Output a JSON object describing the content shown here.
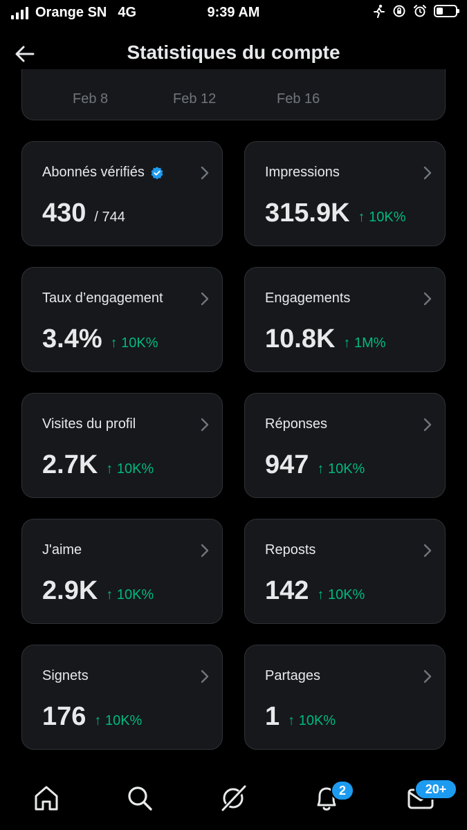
{
  "status_bar": {
    "carrier": "Orange SN",
    "network": "4G",
    "time": "9:39 AM"
  },
  "header": {
    "title": "Statistiques du compte",
    "back_icon": "arrow-left-icon"
  },
  "chart_axis": {
    "labels": [
      "Feb 8",
      "Feb 12",
      "Feb 16"
    ]
  },
  "metrics": [
    {
      "label": "Abonnés vérifiés",
      "value": "430",
      "denominator": "/ 744",
      "delta": "",
      "verified": true
    },
    {
      "label": "Impressions",
      "value": "315.9K",
      "delta": "↑ 10K%"
    },
    {
      "label": "Taux d’engagement",
      "value": "3.4%",
      "delta": "↑ 10K%"
    },
    {
      "label": "Engagements",
      "value": "10.8K",
      "delta": "↑ 1M%"
    },
    {
      "label": "Visites du profil",
      "value": "2.7K",
      "delta": "↑ 10K%"
    },
    {
      "label": "Réponses",
      "value": "947",
      "delta": "↑ 10K%"
    },
    {
      "label": "J'aime",
      "value": "2.9K",
      "delta": "↑ 10K%"
    },
    {
      "label": "Reposts",
      "value": "142",
      "delta": "↑ 10K%"
    },
    {
      "label": "Signets",
      "value": "176",
      "delta": "↑ 10K%"
    },
    {
      "label": "Partages",
      "value": "1",
      "delta": "↑ 10K%"
    }
  ],
  "bottom_nav": {
    "items": [
      "home-icon",
      "search-icon",
      "grok-icon",
      "notifications-icon",
      "messages-icon"
    ],
    "notifications_badge": "2",
    "messages_badge": "20+"
  },
  "colors": {
    "background": "#000000",
    "card": "#16181c",
    "border": "#2f3336",
    "positive": "#00ba7c",
    "accent": "#1d9bf0"
  }
}
